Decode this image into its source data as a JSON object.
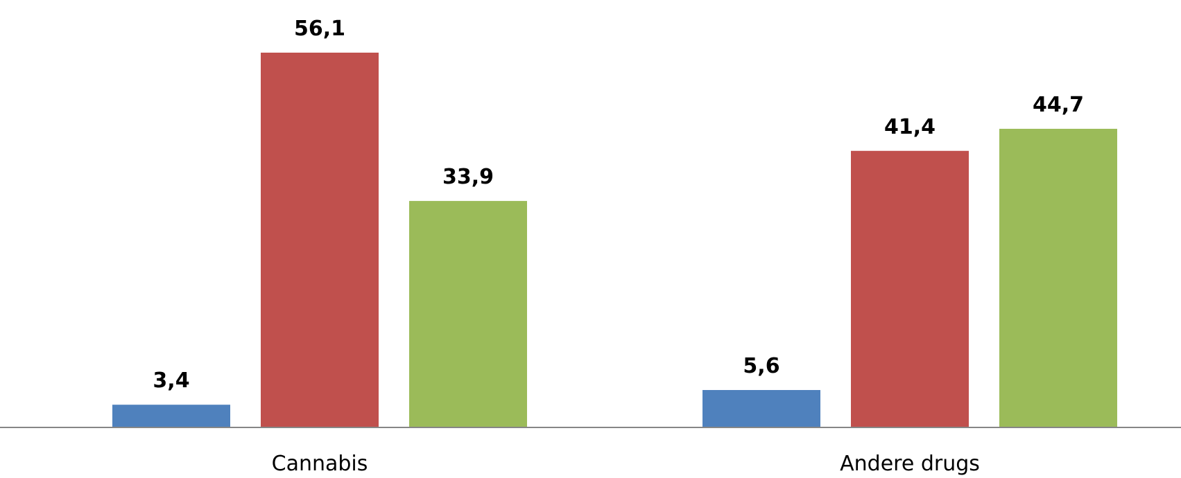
{
  "chart_data": {
    "type": "bar",
    "categories": [
      "Cannabis",
      "Andere drugs"
    ],
    "series": [
      {
        "values": [
          3.4,
          5.6
        ],
        "color": "#4F81BD"
      },
      {
        "values": [
          56.1,
          41.4
        ],
        "color": "#C0504D"
      },
      {
        "values": [
          33.9,
          44.7
        ],
        "color": "#9BBB59"
      }
    ],
    "data_labels": [
      [
        "3,4",
        "5,6"
      ],
      [
        "56,1",
        "41,4"
      ],
      [
        "33,9",
        "44,7"
      ]
    ],
    "title": "",
    "xlabel": "",
    "ylabel": "",
    "ylim": [
      0,
      56.1
    ],
    "grid": false,
    "legend": "none",
    "axis_color": "#868686"
  }
}
